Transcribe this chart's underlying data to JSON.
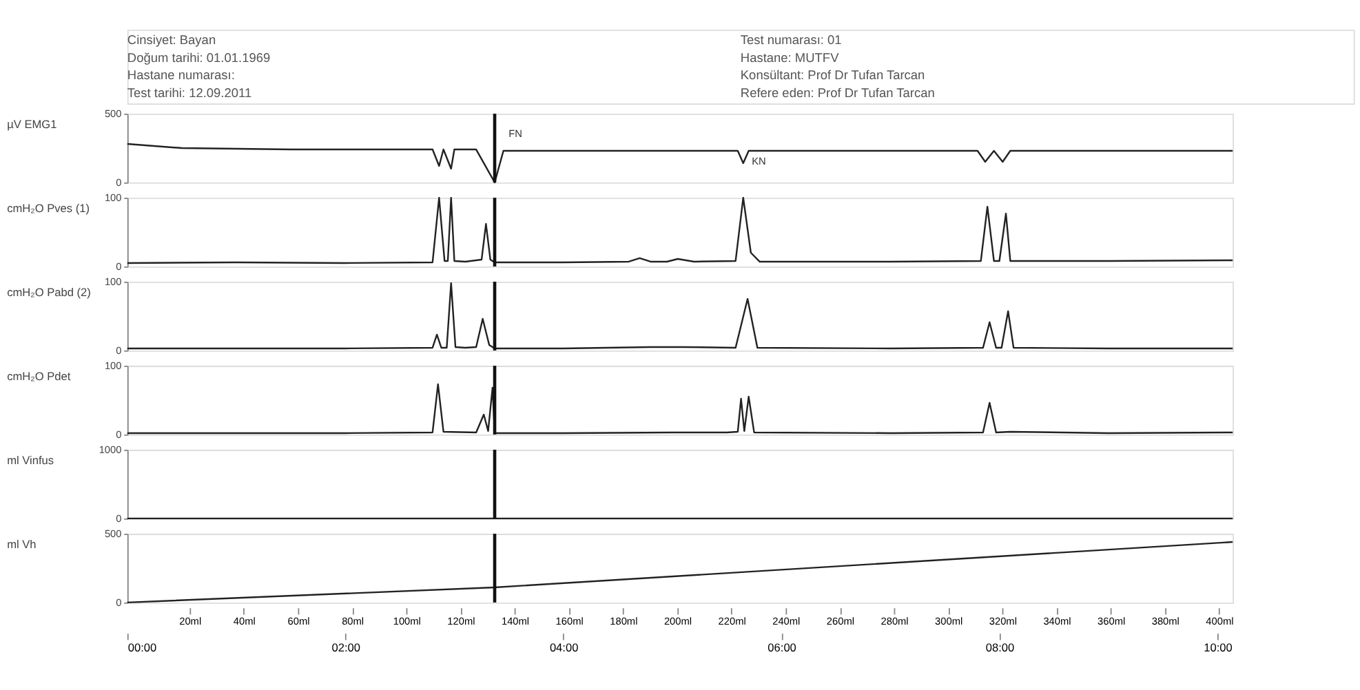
{
  "chart_data": [
    {
      "type": "other",
      "annotations": [
        "Cinsiyet: Bayan",
        "Doğum tarihi: 01.01.1969",
        "Hastane numarası:",
        "Test tarihi: 12.09.2011",
        "Test numarası: 01",
        "Hastane: MUTFV",
        "Konsültant: Prof Dr Tufan Tarcan",
        "Refere eden: Prof Dr Tufan Tarcan"
      ]
    },
    {
      "type": "line",
      "ylabel": "µV EMG1",
      "xlim": [
        0,
        10.14
      ],
      "ylim": [
        0,
        500
      ],
      "yticks": [
        0,
        500
      ],
      "tick_labels": "y",
      "grid": false,
      "series": [
        {
          "color": "#222222",
          "x": [
            0,
            0.5,
            1.5,
            2.8,
            2.86,
            2.9,
            2.97,
            3.0,
            3.2,
            3.37,
            3.45,
            4.5,
            5.6,
            5.65,
            5.7,
            7.8,
            7.87,
            7.95,
            8.03,
            8.1,
            9.0,
            10.14
          ],
          "values": [
            280,
            250,
            240,
            240,
            120,
            240,
            100,
            240,
            240,
            0,
            230,
            230,
            230,
            140,
            230,
            230,
            150,
            230,
            150,
            230,
            230,
            230
          ]
        }
      ],
      "ref_lines": [
        {
          "axis": "x",
          "value": 3.37
        }
      ],
      "annotations": [
        "FN",
        "KN"
      ]
    },
    {
      "type": "line",
      "ylabel": "cmH₂O Pves (1)",
      "xlim": [
        0,
        10.14
      ],
      "ylim": [
        0,
        100
      ],
      "yticks": [
        0,
        100
      ],
      "tick_labels": "y",
      "grid": false,
      "series": [
        {
          "color": "#222222",
          "x": [
            0,
            1.0,
            2.0,
            2.8,
            2.86,
            2.91,
            2.94,
            2.97,
            3.0,
            3.1,
            3.25,
            3.29,
            3.33,
            3.37,
            4.0,
            4.6,
            4.7,
            4.8,
            4.95,
            5.05,
            5.2,
            5.58,
            5.65,
            5.72,
            5.8,
            7.0,
            7.83,
            7.89,
            7.95,
            8.0,
            8.06,
            8.1,
            9.0,
            10.14
          ],
          "values": [
            5,
            6,
            5,
            6,
            100,
            8,
            8,
            100,
            8,
            7,
            10,
            62,
            10,
            6,
            6,
            7,
            12,
            7,
            7,
            11,
            7,
            8,
            100,
            20,
            7,
            7,
            8,
            87,
            8,
            8,
            77,
            8,
            8,
            9
          ]
        }
      ],
      "ref_lines": [
        {
          "axis": "x",
          "value": 3.37
        }
      ]
    },
    {
      "type": "line",
      "ylabel": "cmH₂O Pabd (2)",
      "xlim": [
        0,
        10.14
      ],
      "ylim": [
        0,
        100
      ],
      "yticks": [
        0,
        100
      ],
      "tick_labels": "y",
      "grid": false,
      "series": [
        {
          "color": "#222222",
          "x": [
            0,
            1.0,
            2.0,
            2.8,
            2.84,
            2.88,
            2.93,
            2.97,
            3.01,
            3.1,
            3.2,
            3.26,
            3.32,
            3.37,
            4.0,
            4.8,
            5.1,
            5.58,
            5.69,
            5.78,
            7.0,
            7.85,
            7.91,
            7.97,
            8.02,
            8.08,
            8.13,
            9.0,
            10.14
          ],
          "values": [
            3,
            3,
            3,
            4,
            23,
            4,
            4,
            98,
            5,
            4,
            5,
            46,
            8,
            3,
            3,
            5,
            5,
            4,
            75,
            4,
            3,
            4,
            41,
            4,
            4,
            57,
            4,
            3,
            3
          ]
        }
      ],
      "ref_lines": [
        {
          "axis": "x",
          "value": 3.37
        }
      ]
    },
    {
      "type": "line",
      "ylabel": "cmH₂O Pdet",
      "xlim": [
        0,
        10.14
      ],
      "ylim": [
        0,
        100
      ],
      "yticks": [
        0,
        100
      ],
      "tick_labels": "y",
      "grid": false,
      "series": [
        {
          "color": "#222222",
          "x": [
            0,
            1.0,
            2.0,
            2.8,
            2.85,
            2.9,
            3.2,
            3.27,
            3.31,
            3.35,
            3.37,
            4.0,
            5.0,
            5.5,
            5.6,
            5.63,
            5.66,
            5.7,
            5.75,
            7.0,
            7.85,
            7.91,
            7.97,
            8.1,
            9.0,
            10.14
          ],
          "values": [
            2,
            2,
            2,
            3,
            73,
            4,
            3,
            29,
            5,
            68,
            2,
            2,
            3,
            3,
            4,
            52,
            5,
            55,
            3,
            2,
            3,
            46,
            3,
            4,
            2,
            3
          ]
        }
      ],
      "ref_lines": [
        {
          "axis": "x",
          "value": 3.37
        }
      ]
    },
    {
      "type": "line",
      "ylabel": "ml Vinfus",
      "xlim": [
        0,
        10.14
      ],
      "ylim": [
        0,
        1000
      ],
      "yticks": [
        0,
        {
          "value": 1000,
          "label": "1000"
        }
      ],
      "tick_labels": "y",
      "grid": false,
      "series": [
        {
          "color": "#222222",
          "x": [
            0,
            10.14
          ],
          "values": [
            0,
            0
          ]
        }
      ],
      "ref_lines": [
        {
          "axis": "x",
          "value": 3.37
        }
      ]
    },
    {
      "type": "line",
      "ylabel": "ml Vh",
      "xlim": [
        0,
        10.14
      ],
      "ylim": [
        0,
        500
      ],
      "yticks": [
        0,
        500
      ],
      "grid": false,
      "xticks": [
        {
          "value": 0,
          "label": "00:00"
        },
        {
          "value": 2,
          "label": "02:00"
        },
        {
          "value": 4,
          "label": "04:00"
        },
        {
          "value": 6,
          "label": "06:00"
        },
        {
          "value": 8,
          "label": "08:00"
        },
        {
          "value": 10,
          "label": "10:00"
        }
      ],
      "x2lim": [
        -3,
        405
      ],
      "x2ticks": [
        {
          "value": 20,
          "label": "20ml"
        },
        {
          "value": 40,
          "label": "40ml"
        },
        {
          "value": 60,
          "label": "60ml"
        },
        {
          "value": 80,
          "label": "80ml"
        },
        {
          "value": 100,
          "label": "100ml"
        },
        {
          "value": 120,
          "label": "120ml"
        },
        {
          "value": 140,
          "label": "140ml"
        },
        {
          "value": 160,
          "label": "160ml"
        },
        {
          "value": 180,
          "label": "180ml"
        },
        {
          "value": 200,
          "label": "200ml"
        },
        {
          "value": 220,
          "label": "220ml"
        },
        {
          "value": 240,
          "label": "240ml"
        },
        {
          "value": 260,
          "label": "260ml"
        },
        {
          "value": 280,
          "label": "280ml"
        },
        {
          "value": 300,
          "label": "300ml"
        },
        {
          "value": 320,
          "label": "320ml"
        },
        {
          "value": 340,
          "label": "340ml"
        },
        {
          "value": 360,
          "label": "360ml"
        },
        {
          "value": 380,
          "label": "380ml"
        },
        {
          "value": 400,
          "label": "400ml"
        }
      ],
      "series": [
        {
          "color": "#222222",
          "x": [
            0,
            3.37,
            10.14
          ],
          "values": [
            0,
            110,
            440
          ]
        }
      ],
      "ref_lines": [
        {
          "axis": "x",
          "value": 3.37
        }
      ]
    }
  ]
}
